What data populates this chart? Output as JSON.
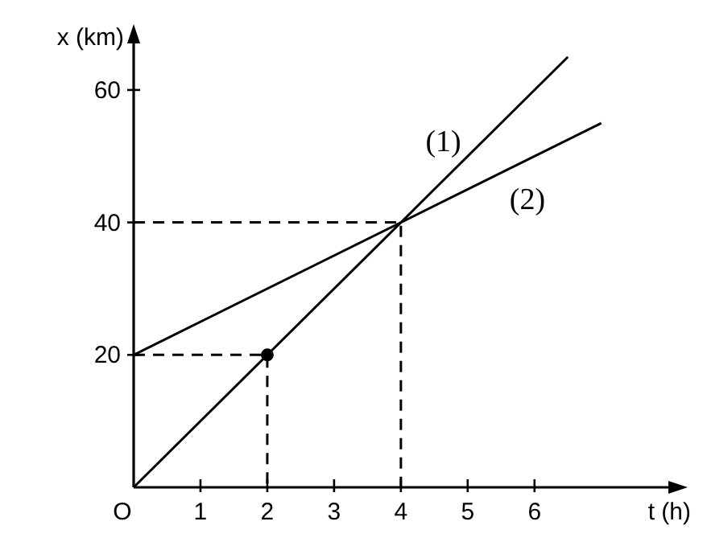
{
  "chart_data": {
    "type": "line",
    "xlabel": "t (h)",
    "ylabel": "x (km)",
    "xlim": [
      0,
      8.1
    ],
    "ylim": [
      0,
      68
    ],
    "xticks": [
      {
        "value": 0,
        "label": "O"
      },
      1,
      2,
      3,
      4,
      5,
      6
    ],
    "yticks": [
      20,
      40,
      60
    ],
    "grid": false,
    "marker": "none",
    "series": [
      {
        "name": "(1)",
        "color": "#000000",
        "x": [
          0,
          6.5
        ],
        "values": [
          0,
          65
        ],
        "line_style": "solid"
      },
      {
        "name": "(2)",
        "color": "#000000",
        "x": [
          0,
          7
        ],
        "values": [
          20,
          55
        ],
        "line_style": "solid"
      },
      {
        "color": "#000000",
        "x": [
          0,
          2,
          2
        ],
        "values": [
          20,
          20,
          0
        ],
        "line_style": "dashed"
      },
      {
        "color": "#000000",
        "x": [
          0,
          4,
          4
        ],
        "values": [
          40,
          40,
          0
        ],
        "line_style": "dashed"
      },
      {
        "type": "scatter",
        "color": "#000000",
        "x": [
          2
        ],
        "values": [
          20
        ],
        "marker": "circle"
      }
    ]
  }
}
